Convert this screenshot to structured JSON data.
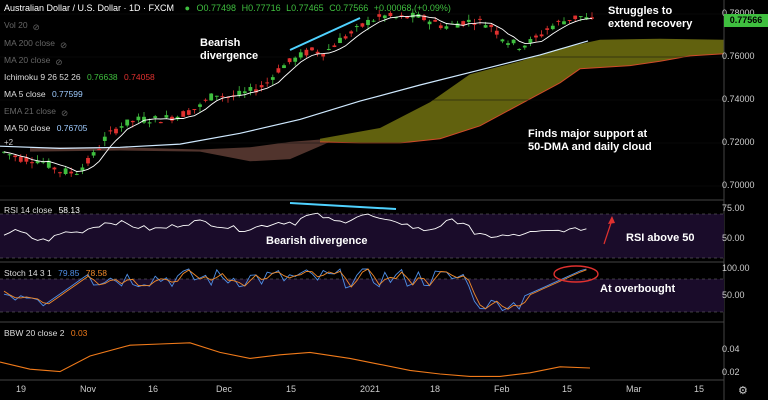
{
  "header": {
    "symbol": "Australian Dollar / U.S. Dollar · 1D · FXCM",
    "open": "O0.77498",
    "high": "H0.77716",
    "low": "L0.77465",
    "close": "C0.77566",
    "change": "+0.00068 (+0.09%)"
  },
  "indicators": {
    "vol": "Vol 20",
    "ma200": "MA 200 close",
    "ma20": "MA 20 close",
    "ichimoku": "Ichimoku 9 26 52 26",
    "ichimoku_v1": "0.76638",
    "ichimoku_v2": "0.74058",
    "ma5": "MA 5 close",
    "ma5_v": "0.77599",
    "ema21": "EMA 21 close",
    "ma50": "MA 50 close",
    "ma50_v": "0.76705",
    "plus2": "+2"
  },
  "rsi": {
    "label": "RSI 14 close",
    "value": "58.13"
  },
  "stoch": {
    "label": "Stoch 14 3 1",
    "k": "79.85",
    "d": "78.58"
  },
  "bbw": {
    "label": "BBW 20 close 2",
    "value": "0.03"
  },
  "annotations": {
    "bearish_top_1": "Bearish",
    "bearish_top_2": "divergence",
    "struggles_1": "Struggles to",
    "struggles_2": "extend recovery",
    "support_1": "Finds major support at",
    "support_2": "50-DMA and daily cloud",
    "rsi_div": "Bearish divergence",
    "rsi_above": "RSI above 50",
    "overbought": "At overbought"
  },
  "price_axis": [
    "0.78000",
    "0.76000",
    "0.74000",
    "0.72000",
    "0.70000"
  ],
  "price_tag": "0.77566",
  "rsi_axis": [
    "75.00",
    "50.00"
  ],
  "stoch_axis": [
    "100.00",
    "50.00"
  ],
  "bbw_axis": [
    "0.04",
    "0.02"
  ],
  "time_axis": [
    "19",
    "Nov",
    "16",
    "Dec",
    "15",
    "2021",
    "18",
    "Feb",
    "15",
    "Mar",
    "15"
  ],
  "colors": {
    "up": "#3fbf3f",
    "down": "#e0312f",
    "ma50": "#cfe9ff",
    "ma5": "#ffffff",
    "cloud_bull": "#6b6b10",
    "cloud_bear": "#5a3a32",
    "rsi_bg": "#1a0c2a",
    "divergence": "#4fd2ff",
    "stoch_k": "#4f8fe6",
    "stoch_d": "#f08a2a",
    "bbw": "#f07a1a",
    "ring": "#e0312f",
    "arrow": "#e0312f"
  }
}
